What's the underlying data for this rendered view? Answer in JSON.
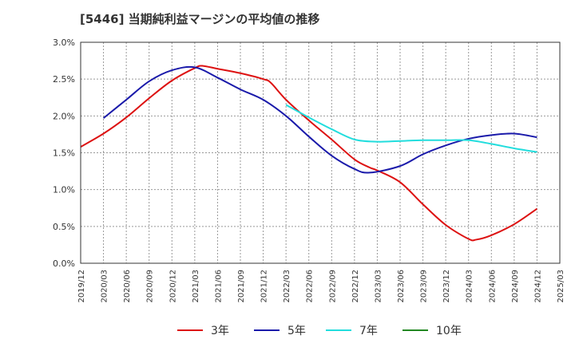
{
  "chart_data": {
    "type": "line",
    "title": "[5446]  当期純利益マージンの平均値の推移",
    "xlabel": "",
    "ylabel": "",
    "ylim": [
      0,
      3.0
    ],
    "y_ticks": [
      "0.0%",
      "0.5%",
      "1.0%",
      "1.5%",
      "2.0%",
      "2.5%",
      "3.0%"
    ],
    "x_ticks": [
      "2019/12",
      "2020/03",
      "2020/06",
      "2020/09",
      "2020/12",
      "2021/03",
      "2021/06",
      "2021/09",
      "2021/12",
      "2022/03",
      "2022/06",
      "2022/09",
      "2022/12",
      "2023/03",
      "2023/06",
      "2023/09",
      "2023/12",
      "2024/03",
      "2024/06",
      "2024/09",
      "2024/12",
      "2025/03"
    ],
    "grid": true,
    "legend_position": "bottom",
    "series": [
      {
        "name": "3年",
        "color": "#dd1111",
        "x": [
          "2019/12",
          "2020/03",
          "2020/06",
          "2020/09",
          "2020/12",
          "2021/03",
          "2021/04",
          "2021/06",
          "2021/09",
          "2021/12",
          "2022/01",
          "2022/03",
          "2022/06",
          "2022/09",
          "2022/12",
          "2023/02",
          "2023/03",
          "2023/06",
          "2023/09",
          "2023/12",
          "2024/03",
          "2024/04",
          "2024/06",
          "2024/09",
          "2024/12"
        ],
        "values": [
          1.58,
          1.76,
          1.98,
          2.24,
          2.48,
          2.65,
          2.68,
          2.64,
          2.58,
          2.5,
          2.45,
          2.22,
          1.94,
          1.68,
          1.41,
          1.3,
          1.26,
          1.1,
          0.8,
          0.52,
          0.33,
          0.32,
          0.38,
          0.53,
          0.74
        ]
      },
      {
        "name": "5年",
        "color": "#1a1aaa",
        "x": [
          "2020/03",
          "2020/06",
          "2020/09",
          "2020/12",
          "2021/03",
          "2021/06",
          "2021/09",
          "2021/12",
          "2022/03",
          "2022/06",
          "2022/09",
          "2022/12",
          "2023/02",
          "2023/06",
          "2023/09",
          "2023/12",
          "2024/03",
          "2024/06",
          "2024/09",
          "2024/12"
        ],
        "values": [
          1.97,
          2.22,
          2.47,
          2.62,
          2.66,
          2.52,
          2.36,
          2.22,
          2.0,
          1.72,
          1.46,
          1.28,
          1.23,
          1.32,
          1.48,
          1.6,
          1.69,
          1.74,
          1.76,
          1.71
        ]
      },
      {
        "name": "7年",
        "color": "#22dddd",
        "x": [
          "2022/03",
          "2022/06",
          "2022/09",
          "2022/12",
          "2023/03",
          "2023/06",
          "2023/09",
          "2023/12",
          "2024/03",
          "2024/06",
          "2024/09",
          "2024/12"
        ],
        "values": [
          2.15,
          1.98,
          1.82,
          1.68,
          1.65,
          1.66,
          1.67,
          1.67,
          1.67,
          1.62,
          1.56,
          1.51
        ]
      },
      {
        "name": "10年",
        "color": "#228822",
        "x": [],
        "values": []
      }
    ]
  }
}
